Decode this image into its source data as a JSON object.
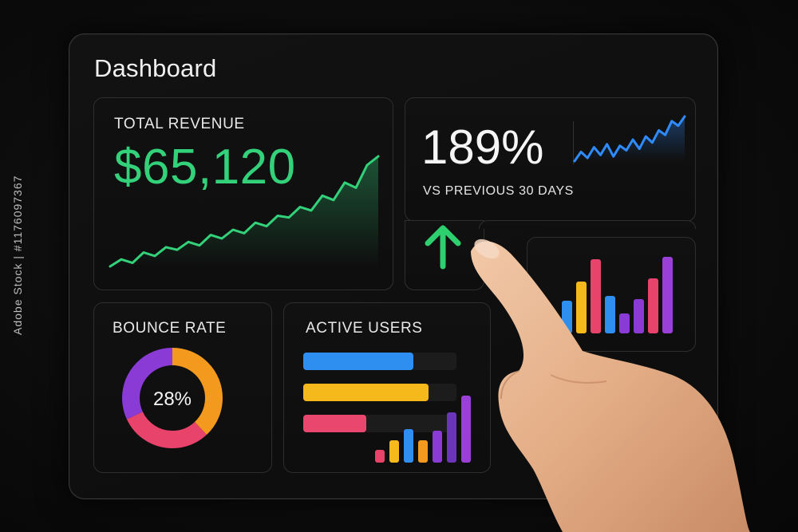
{
  "dashboard": {
    "title": "Dashboard"
  },
  "total_revenue": {
    "label": "TOTAL REVENUE",
    "value": "$65,120",
    "color": "#33d17a",
    "trend": [
      14,
      22,
      18,
      30,
      26,
      36,
      33,
      42,
      38,
      50,
      46,
      56,
      52,
      64,
      60,
      72,
      70,
      82,
      78,
      95,
      90,
      110,
      104,
      130,
      140
    ]
  },
  "growth": {
    "value": "189%",
    "label": "VS PREVIOUS 30 DAYS",
    "color": "#2f8cff",
    "trend": [
      30,
      42,
      34,
      48,
      38,
      52,
      36,
      50,
      44,
      58,
      46,
      62,
      54,
      70,
      64,
      82,
      76,
      88
    ],
    "arrow_icon": "arrow-up-icon",
    "arrow_color": "#2ecf6e"
  },
  "bounce_rate": {
    "label": "BOUNCE RATE",
    "value": "28%",
    "segments": [
      {
        "color": "#f39a1e",
        "value": 0.38
      },
      {
        "color": "#e8436a",
        "value": 0.3
      },
      {
        "color": "#8a3bd6",
        "value": 0.32
      }
    ]
  },
  "active_users": {
    "label": "ACTIVE USERS",
    "bars": [
      {
        "color": "#2e8ff0",
        "value": 0.72
      },
      {
        "color": "#f6b91c",
        "value": 0.82
      },
      {
        "color": "#e9476d",
        "value": 0.41
      }
    ],
    "columns": [
      {
        "color": "#e8436a",
        "value": 0.18
      },
      {
        "color": "#f6b91c",
        "value": 0.32
      },
      {
        "color": "#2e8ff0",
        "value": 0.48
      },
      {
        "color": "#f39a1e",
        "value": 0.32
      },
      {
        "color": "#8a3bd6",
        "value": 0.45
      },
      {
        "color": "#6a35b8",
        "value": 0.72
      },
      {
        "color": "#9a3fd8",
        "value": 0.95
      }
    ]
  },
  "column_chart": {
    "columns": [
      {
        "color": "#2e8ff0",
        "value": 0.42
      },
      {
        "color": "#f6b91c",
        "value": 0.66
      },
      {
        "color": "#e8436a",
        "value": 0.95
      },
      {
        "color": "#2e8ff0",
        "value": 0.48
      },
      {
        "color": "#8a3bd6",
        "value": 0.26
      },
      {
        "color": "#8a3bd6",
        "value": 0.44
      },
      {
        "color": "#e8436a",
        "value": 0.7
      },
      {
        "color": "#9a3fd8",
        "value": 0.98
      }
    ]
  },
  "stock_id": "Adobe Stock | #1176097367"
}
